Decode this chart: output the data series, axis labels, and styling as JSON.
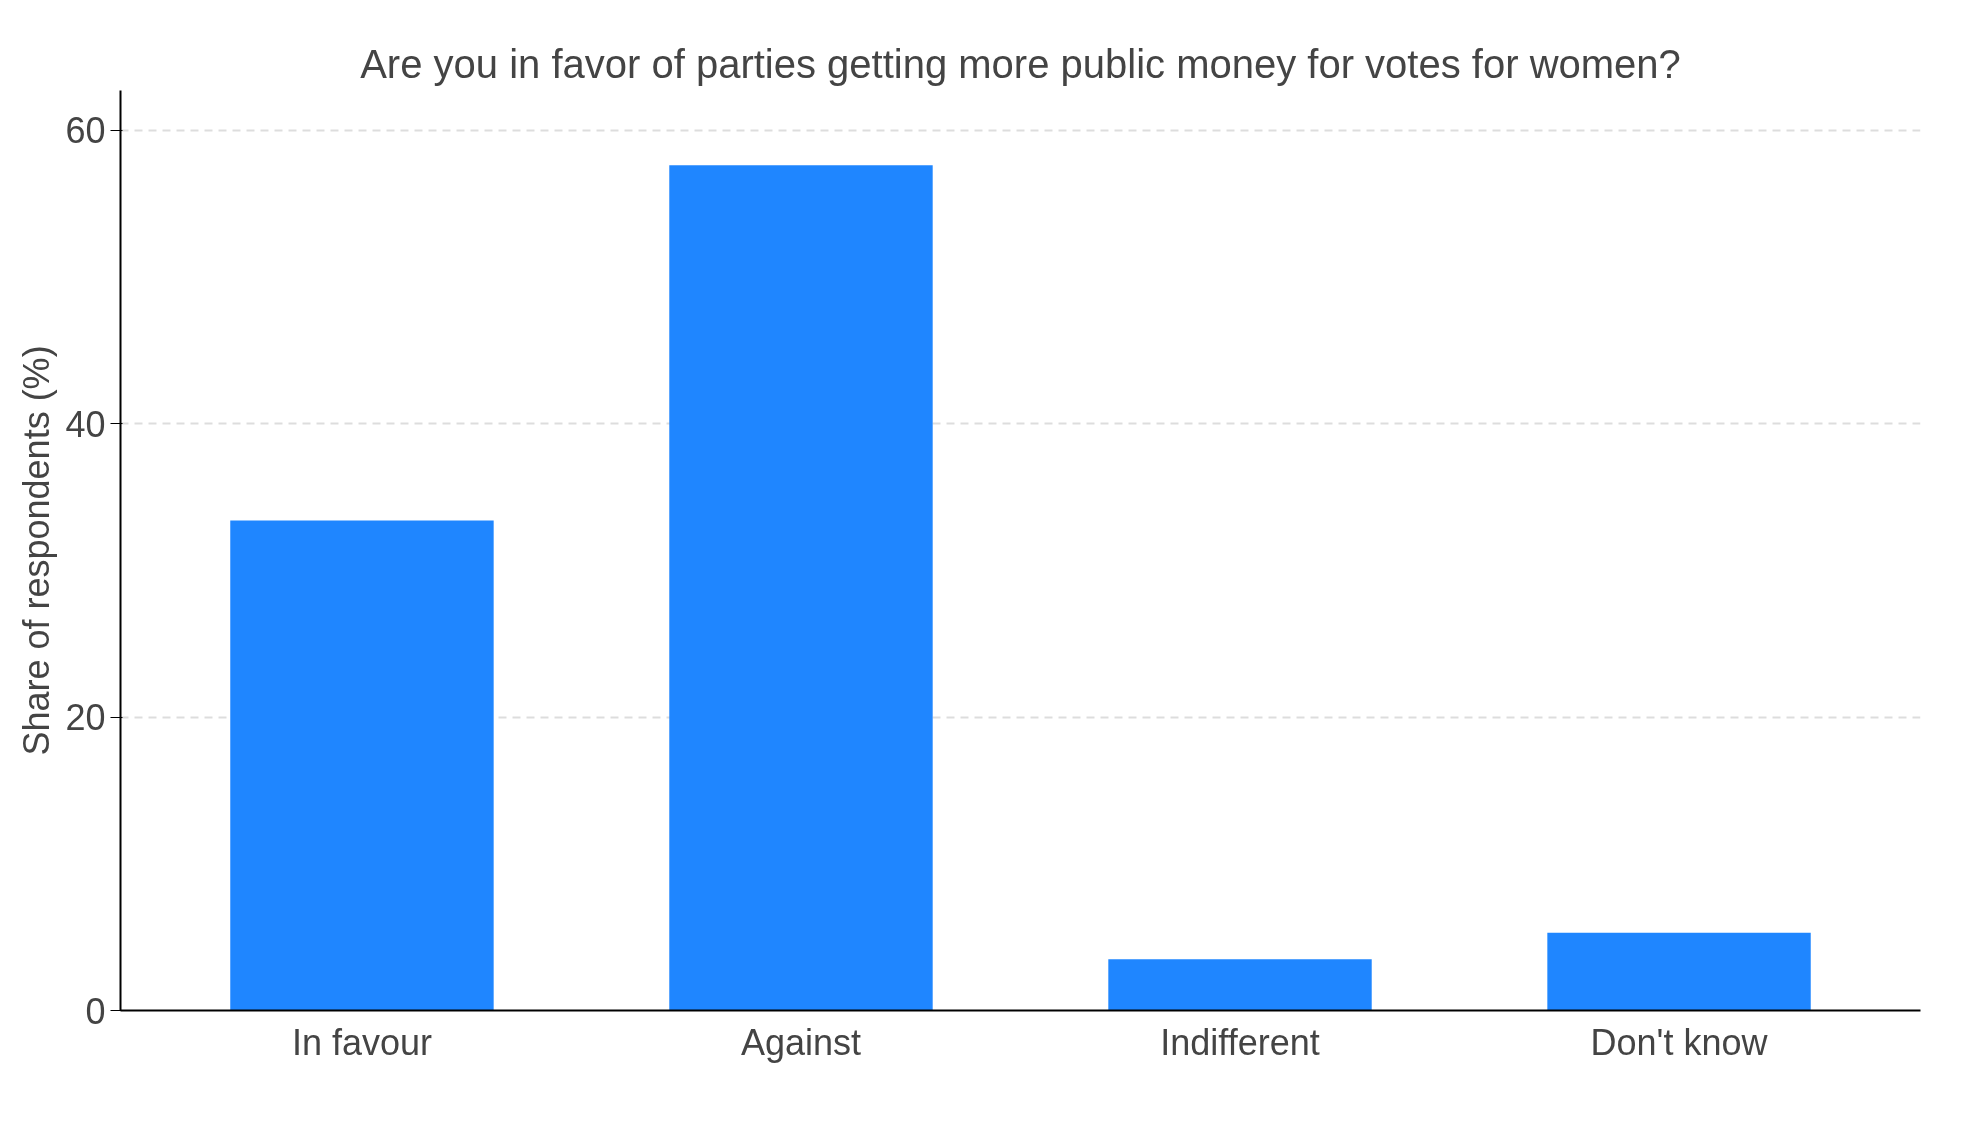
{
  "chart_data": {
    "type": "bar",
    "title": "Are you in favor of parties getting more public money for votes for women?",
    "ylabel": "Share of respondents (%)",
    "categories": [
      "In favour",
      "Against",
      "Indifferent",
      "Don't know"
    ],
    "values": [
      33.4,
      57.6,
      3.5,
      5.3
    ],
    "color": "#1f86ff",
    "ylim": [
      0,
      62.7
    ],
    "yticks": [
      0,
      20,
      40,
      60
    ],
    "grid": "y"
  }
}
